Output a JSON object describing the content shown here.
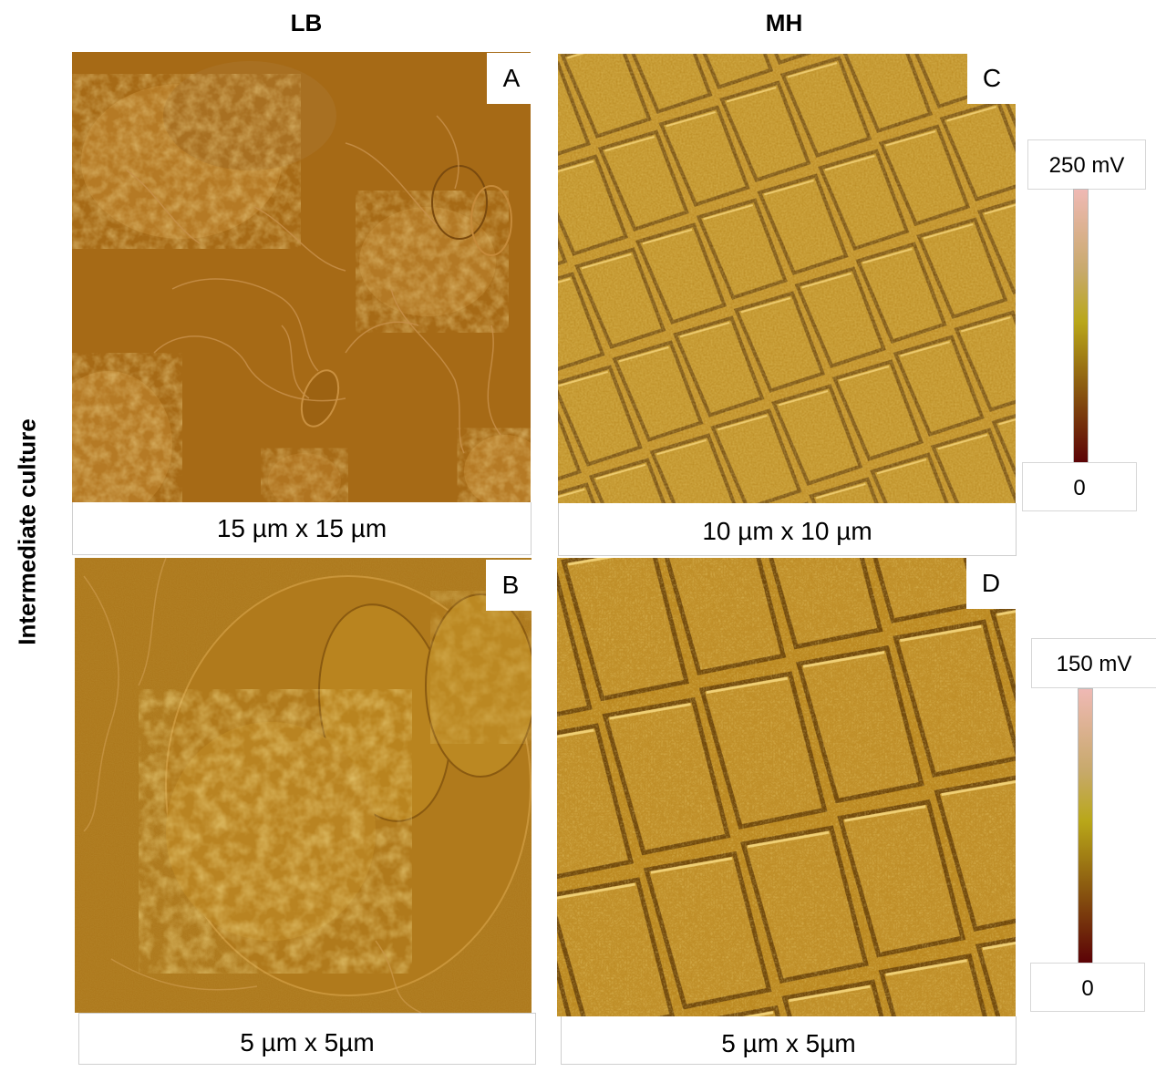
{
  "columns": {
    "left": "LB",
    "right": "MH"
  },
  "row_label": "Intermediate culture",
  "panels": [
    {
      "letter": "A",
      "scale": "15 µm x 15 µm"
    },
    {
      "letter": "B",
      "scale": "5 µm x 5µm"
    },
    {
      "letter": "C",
      "scale": "10 µm x 10 µm"
    },
    {
      "letter": "D",
      "scale": "5 µm x 5µm"
    }
  ],
  "colorbars": [
    {
      "max": "250 mV",
      "min": "0"
    },
    {
      "max": "150 mV",
      "min": "0"
    }
  ],
  "colors": {
    "lb_background": "#a76b17",
    "mh_background": "#b9861e",
    "colorbar_top": "#efb9b4",
    "colorbar_mid": "#b9a719",
    "colorbar_bottom": "#5a0006"
  }
}
